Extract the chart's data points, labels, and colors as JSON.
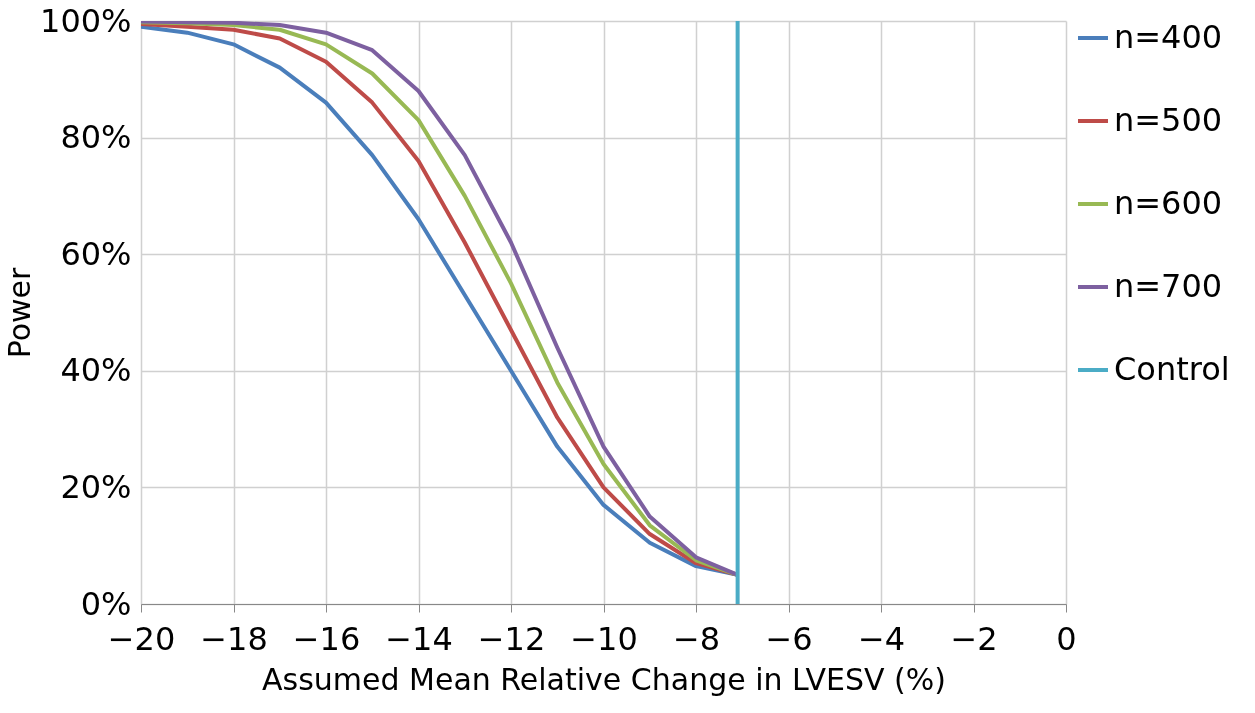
{
  "chart_data": {
    "type": "line",
    "xlabel": "Assumed Mean Relative Change in LVESV (%)",
    "ylabel": "Power",
    "xlim": [
      -20,
      0
    ],
    "xticks": [
      -20,
      -18,
      -16,
      -14,
      -12,
      -10,
      -8,
      -6,
      -4,
      -2,
      0
    ],
    "ylim": [
      0,
      100
    ],
    "yticks": [
      {
        "value": 0,
        "label": "0%"
      },
      {
        "value": 20,
        "label": "20%"
      },
      {
        "value": 40,
        "label": "40%"
      },
      {
        "value": 60,
        "label": "60%"
      },
      {
        "value": 80,
        "label": "80%"
      },
      {
        "value": 100,
        "label": "100%"
      }
    ],
    "grid": true,
    "legend": "right",
    "marker": "none",
    "line_style": "solid",
    "series": [
      {
        "name": "n=400",
        "color": "#4a7ebb",
        "x": [
          -20,
          -19,
          -18,
          -17,
          -16,
          -15,
          -14,
          -13,
          -12,
          -11,
          -10,
          -9,
          -8,
          -7.1
        ],
        "values": [
          99,
          98,
          96,
          92,
          86,
          77,
          66,
          53,
          40,
          27,
          17,
          10.5,
          6.5,
          5
        ]
      },
      {
        "name": "n=500",
        "color": "#be4b48",
        "x": [
          -20,
          -19,
          -18,
          -17,
          -16,
          -15,
          -14,
          -13,
          -12,
          -11,
          -10,
          -9,
          -8,
          -7.1
        ],
        "values": [
          99.5,
          99,
          98.5,
          97,
          93,
          86,
          76,
          62,
          47,
          32,
          20,
          12,
          7,
          5
        ]
      },
      {
        "name": "n=600",
        "color": "#98b954",
        "x": [
          -20,
          -19,
          -18,
          -17,
          -16,
          -15,
          -14,
          -13,
          -12,
          -11,
          -10,
          -9,
          -8,
          -7.1
        ],
        "values": [
          99.8,
          99.6,
          99.3,
          98.5,
          96,
          91,
          83,
          70,
          55,
          38,
          24,
          13.5,
          7.5,
          5
        ]
      },
      {
        "name": "n=700",
        "color": "#7d60a0",
        "x": [
          -20,
          -19,
          -18,
          -17,
          -16,
          -15,
          -14,
          -13,
          -12,
          -11,
          -10,
          -9,
          -8,
          -7.1
        ],
        "values": [
          99.9,
          99.8,
          99.7,
          99.3,
          98,
          95,
          88,
          77,
          62,
          44,
          27,
          15,
          8,
          5
        ]
      },
      {
        "name": "Control",
        "color": "#4bacc6",
        "x": [
          -7.1,
          -7.1
        ],
        "values": [
          0,
          100
        ]
      }
    ]
  }
}
